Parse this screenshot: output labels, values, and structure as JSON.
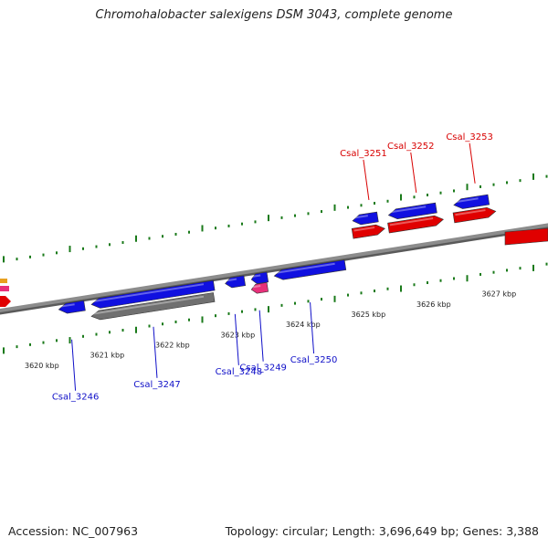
{
  "title": "Chromohalobacter salexigens DSM 3043, complete genome",
  "footer": {
    "accession": "Accession: NC_007963",
    "topology": "Topology: circular; Length: 3,696,649 bp; Genes: 3,388"
  },
  "colors": {
    "backbone": "#8c8c8c",
    "tick": "#1a7a1a",
    "forward_gene": "#1010e0",
    "reverse_gene": "#e00000",
    "pseudo_gene": "#707070",
    "rna_gene": "#e8307a",
    "label_forward": "#1010c8",
    "label_reverse": "#d80000"
  },
  "scale_labels": [
    {
      "text": "3620 kbp",
      "pos": 3620
    },
    {
      "text": "3621 kbp",
      "pos": 3621
    },
    {
      "text": "3622 kbp",
      "pos": 3622
    },
    {
      "text": "3623 kbp",
      "pos": 3623
    },
    {
      "text": "3624 kbp",
      "pos": 3624
    },
    {
      "text": "3625 kbp",
      "pos": 3625
    },
    {
      "text": "3626 kbp",
      "pos": 3626
    },
    {
      "text": "3627 kbp",
      "pos": 3627
    }
  ],
  "genes": [
    {
      "id": "Csal_3246",
      "label": "Csal_3246",
      "strand": "forward",
      "start": 3620.2,
      "end": 3620.6,
      "type": "cds"
    },
    {
      "id": "Csal_3247",
      "label": "Csal_3247",
      "strand": "forward",
      "start": 3620.7,
      "end": 3622.6,
      "type": "cds"
    },
    {
      "id": "Csal_3247-pseudo",
      "label": "",
      "strand": "forward",
      "start": 3620.7,
      "end": 3622.6,
      "type": "pseudo"
    },
    {
      "id": "Csal_3248",
      "label": "Csal_3248",
      "strand": "forward",
      "start": 3622.75,
      "end": 3623.05,
      "type": "cds"
    },
    {
      "id": "Csal_3249",
      "label": "Csal_3249",
      "strand": "forward",
      "start": 3623.15,
      "end": 3623.4,
      "type": "cds"
    },
    {
      "id": "Csal_3249-rna",
      "label": "",
      "strand": "forward",
      "start": 3623.15,
      "end": 3623.4,
      "type": "rna"
    },
    {
      "id": "Csal_3250",
      "label": "Csal_3250",
      "strand": "forward",
      "start": 3623.5,
      "end": 3624.6,
      "type": "cds"
    },
    {
      "id": "Csal_3251",
      "label": "Csal_3251",
      "strand": "reverse",
      "start": 3624.7,
      "end": 3625.2,
      "type": "cds"
    },
    {
      "id": "Csal_3252",
      "label": "Csal_3252",
      "strand": "reverse",
      "start": 3625.25,
      "end": 3626.1,
      "type": "cds"
    },
    {
      "id": "Csal_3253",
      "label": "Csal_3253",
      "strand": "reverse",
      "start": 3626.25,
      "end": 3626.9,
      "type": "cds"
    }
  ]
}
